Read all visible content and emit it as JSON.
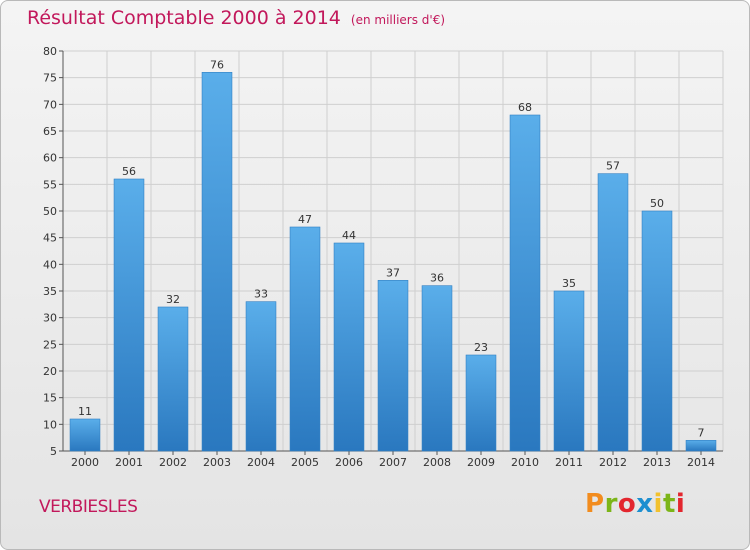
{
  "header": {
    "title": "Résultat Comptable 2000 à 2014",
    "unit": "(en milliers d'€)"
  },
  "footer": {
    "commune": "VERBIESLES",
    "logo_text": "Proxiti",
    "logo_colors": [
      "#f28c1e",
      "#7cb518",
      "#e3262e",
      "#1d8fd0",
      "#f2c12e",
      "#7cb518",
      "#e3262e"
    ]
  },
  "chart_data": {
    "type": "bar",
    "categories": [
      "2000",
      "2001",
      "2002",
      "2003",
      "2004",
      "2005",
      "2006",
      "2007",
      "2008",
      "2009",
      "2010",
      "2011",
      "2012",
      "2013",
      "2014"
    ],
    "values": [
      11,
      56,
      32,
      76,
      33,
      47,
      44,
      37,
      36,
      23,
      68,
      35,
      57,
      50,
      7
    ],
    "ylim": [
      5,
      80
    ],
    "yticks": [
      5,
      10,
      15,
      20,
      25,
      30,
      35,
      40,
      45,
      50,
      55,
      60,
      65,
      70,
      75,
      80
    ],
    "grid": true,
    "bar_color": "#3d8fd6"
  }
}
